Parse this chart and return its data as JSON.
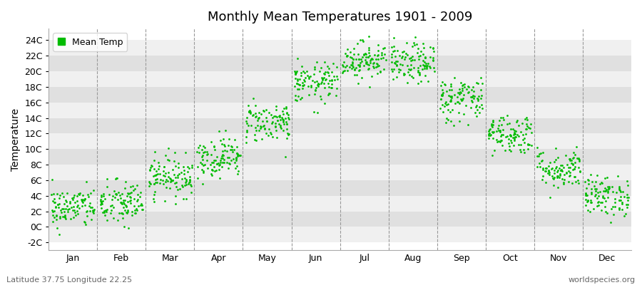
{
  "title": "Monthly Mean Temperatures 1901 - 2009",
  "ylabel": "Temperature",
  "dot_color": "#00bb00",
  "bg_color": "#ffffff",
  "plot_bg_light": "#f0f0f0",
  "plot_bg_dark": "#e0e0e0",
  "grid_line_color": "#999999",
  "yticks": [
    -2,
    0,
    2,
    4,
    6,
    8,
    10,
    12,
    14,
    16,
    18,
    20,
    22,
    24
  ],
  "ytick_labels": [
    "-2C",
    "0C",
    "2C",
    "4C",
    "6C",
    "8C",
    "10C",
    "12C",
    "14C",
    "16C",
    "18C",
    "20C",
    "22C",
    "24C"
  ],
  "ylim": [
    -3,
    25.5
  ],
  "month_names": [
    "Jan",
    "Feb",
    "Mar",
    "Apr",
    "May",
    "Jun",
    "Jul",
    "Aug",
    "Sep",
    "Oct",
    "Nov",
    "Dec"
  ],
  "footer_left": "Latitude 37.75 Longitude 22.25",
  "footer_right": "worldspecies.org",
  "legend_label": "Mean Temp",
  "num_years": 109,
  "seed": 42,
  "monthly_means": [
    2.5,
    3.0,
    6.5,
    9.0,
    13.5,
    18.5,
    21.5,
    21.0,
    16.5,
    12.0,
    7.5,
    4.0
  ],
  "monthly_stds": [
    1.3,
    1.5,
    1.3,
    1.3,
    1.3,
    1.3,
    1.2,
    1.3,
    1.5,
    1.3,
    1.3,
    1.3
  ]
}
